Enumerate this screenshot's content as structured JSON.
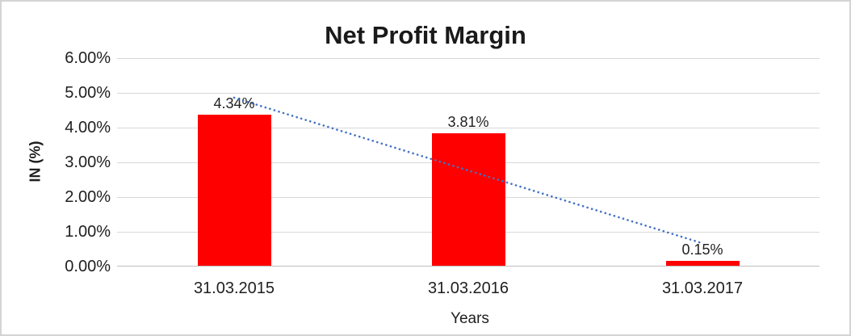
{
  "chart_data": {
    "type": "bar",
    "title": "Net Profit Margin",
    "xlabel": "Years",
    "ylabel": "IN (%)",
    "categories": [
      "31.03.2015",
      "31.03.2016",
      "31.03.2017"
    ],
    "values": [
      4.34,
      3.81,
      0.15
    ],
    "data_labels": [
      "4.34%",
      "3.81%",
      "0.15%"
    ],
    "y_tick_labels": [
      "6.00%",
      "5.00%",
      "4.00%",
      "3.00%",
      "2.00%",
      "1.00%",
      "0.00%"
    ],
    "ylim": [
      0,
      6
    ],
    "grid": true,
    "legend": "none",
    "bar_color": "#ff0000",
    "gridline_color": "#d9d9d9",
    "axis_line_color": "#bfbfbf",
    "background_color": "#ffffff",
    "border_color": "#d4d4d4",
    "trendline": {
      "type": "linear",
      "style": "dotted",
      "color": "#4472c4",
      "start_value": 4.86,
      "end_value": 0.67
    }
  }
}
